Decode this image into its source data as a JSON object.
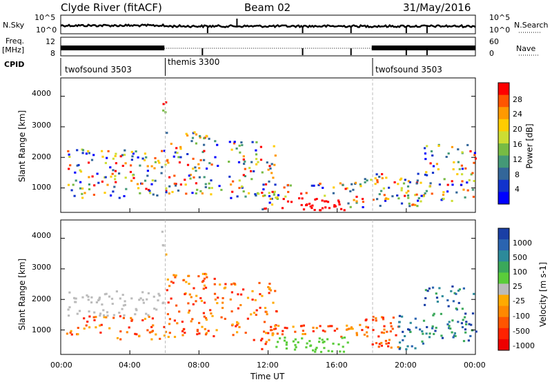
{
  "header": {
    "station": "Clyde River (fitACF)",
    "beam": "Beam 02",
    "date": "31/May/2016"
  },
  "panels": {
    "nsky_label": "N.Sky",
    "nsearch_label": "N.Search",
    "noise_ticks": [
      "10^5",
      "10^0"
    ],
    "freq_label": "Freq.",
    "freq_unit": "[MHz]",
    "freq_ticks": [
      "12",
      "8"
    ],
    "nave_label": "Nave",
    "nave_ticks": [
      "60",
      "0"
    ],
    "cpid_label": "CPID",
    "cpid_segments": [
      {
        "name": "twofsound 3503"
      },
      {
        "name": "themis 3300"
      },
      {
        "name": "twofsound 3503"
      }
    ]
  },
  "power_colorbar": {
    "label": "Power [dB]",
    "ticks": [
      "28",
      "24",
      "20",
      "16",
      "12",
      "8",
      "4"
    ],
    "colors": [
      "#ff0000",
      "#ff5500",
      "#ff9900",
      "#ffcc00",
      "#ccdd33",
      "#77bb44",
      "#449977",
      "#336699",
      "#1133cc",
      "#0000ff"
    ]
  },
  "velocity_colorbar": {
    "label": "Velocity [m s-1]",
    "ticks": [
      "1000",
      "500",
      "100",
      "25",
      "-25",
      "-100",
      "-500",
      "-1000"
    ],
    "colors": [
      "#1a3fa5",
      "#2a64b0",
      "#2c8a9a",
      "#3aa85a",
      "#5acc3a",
      "#bbbbbb",
      "#ffaa00",
      "#ff8800",
      "#ff5500",
      "#ff2200",
      "#ee0000"
    ]
  },
  "chart_data": [
    {
      "type": "heatmap",
      "title": "Power",
      "ylabel": "Slant Range [km]",
      "xlabel": "",
      "y_ticks": [
        "4000",
        "3000",
        "2000",
        "1000"
      ],
      "ylim": [
        200,
        4600
      ],
      "xlim": [
        "00:00",
        "24:00"
      ],
      "x_ticks": [
        "00:00",
        "04:00",
        "08:00",
        "12:00",
        "16:00",
        "20:00",
        "00:00"
      ]
    },
    {
      "type": "heatmap",
      "title": "Velocity",
      "ylabel": "Slant Range [km]",
      "xlabel": "Time UT",
      "y_ticks": [
        "4000",
        "3000",
        "2000",
        "1000"
      ],
      "ylim": [
        200,
        4600
      ],
      "xlim": [
        "00:00",
        "24:00"
      ],
      "x_ticks": [
        "00:00",
        "04:00",
        "08:00",
        "12:00",
        "16:00",
        "20:00",
        "00:00"
      ]
    }
  ]
}
